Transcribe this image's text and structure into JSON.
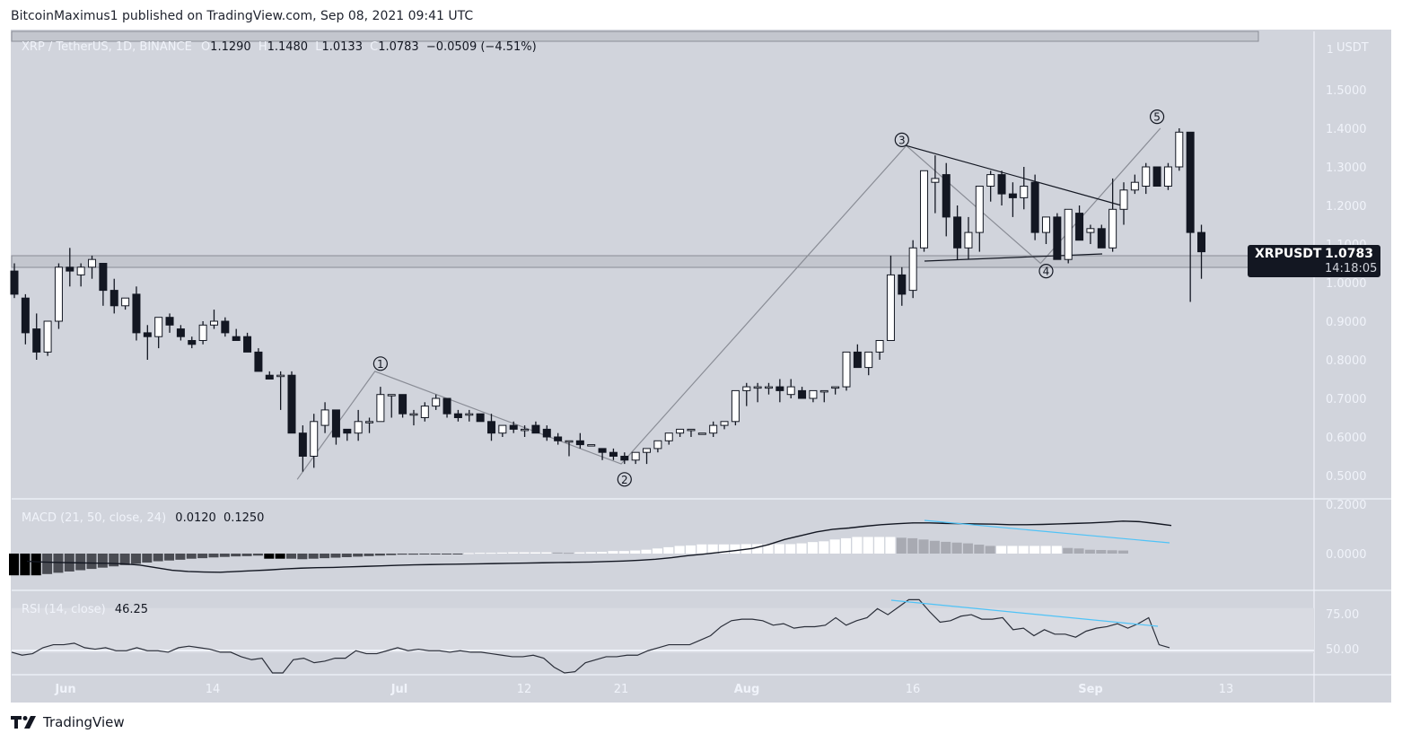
{
  "header": {
    "publisher_line": "BitcoinMaximus1 published on TradingView.com, Sep 08, 2021 09:41 UTC"
  },
  "legend": {
    "symbol": "XRP / TetherUS, 1D, BINANCE",
    "o_label": "O",
    "o": "1.1290",
    "h_label": "H",
    "h": "1.1480",
    "l_label": "L",
    "l": "1.0133",
    "c_label": "C",
    "c": "1.0783",
    "change": "−0.0509 (−4.51%)"
  },
  "macd_legend": {
    "label": "MACD (21, 50, close, 24)",
    "v1": "0.0120",
    "v2": "0.1250"
  },
  "rsi_legend": {
    "label": "RSI (14, close)",
    "v": "46.25"
  },
  "price_tag": {
    "symbol": "XRPUSDT",
    "price": "1.0783",
    "countdown": "14:18:05"
  },
  "footer": {
    "brand": "TradingView"
  },
  "colors": {
    "bg": "#d1d4dc",
    "bull": "#ffffff",
    "bear": "#131722",
    "wave": "#8a8d96",
    "divergence": "#4fc3f7",
    "hist_neg_dark": "#000000",
    "hist_neg": "#4a4c53",
    "hist_pos": "#ffffff",
    "hist_pos_fall": "#a8aab2"
  },
  "chart_data": {
    "type": "candlestick",
    "title": "XRP / TetherUS, 1D, BINANCE",
    "ylabel": "USDT",
    "currency_label": "USDT",
    "y_ticks": [
      "1.5000",
      "1.4000",
      "1.3000",
      "1.2000",
      "1.1000",
      "1.0000",
      "0.9000",
      "0.8000",
      "0.7000",
      "0.6000",
      "0.5000"
    ],
    "x_ticks": [
      "Jun",
      "14",
      "Jul",
      "12",
      "21",
      "Aug",
      "16",
      "Sep",
      "13"
    ],
    "macd_ticks": [
      "0.2000",
      "0.0000"
    ],
    "rsi_ticks": [
      "75.00",
      "50.00"
    ],
    "last": {
      "open": 1.129,
      "high": 1.148,
      "low": 1.0133,
      "close": 1.0783,
      "change": -0.0509,
      "change_pct": -4.51
    },
    "candles": [
      [
        1.03,
        1.05,
        0.96,
        0.97
      ],
      [
        0.96,
        0.97,
        0.84,
        0.87
      ],
      [
        0.88,
        0.92,
        0.8,
        0.82
      ],
      [
        0.82,
        0.9,
        0.81,
        0.9
      ],
      [
        0.9,
        1.05,
        0.88,
        1.04
      ],
      [
        1.04,
        1.09,
        0.99,
        1.03
      ],
      [
        1.02,
        1.05,
        0.99,
        1.04
      ],
      [
        1.04,
        1.07,
        1.01,
        1.06
      ],
      [
        1.05,
        1.05,
        0.94,
        0.98
      ],
      [
        0.98,
        1.01,
        0.92,
        0.94
      ],
      [
        0.94,
        0.96,
        0.93,
        0.96
      ],
      [
        0.97,
        0.99,
        0.85,
        0.87
      ],
      [
        0.87,
        0.89,
        0.8,
        0.86
      ],
      [
        0.86,
        0.91,
        0.83,
        0.91
      ],
      [
        0.91,
        0.92,
        0.87,
        0.89
      ],
      [
        0.88,
        0.89,
        0.85,
        0.86
      ],
      [
        0.85,
        0.86,
        0.83,
        0.84
      ],
      [
        0.85,
        0.9,
        0.84,
        0.89
      ],
      [
        0.89,
        0.93,
        0.88,
        0.9
      ],
      [
        0.9,
        0.91,
        0.86,
        0.87
      ],
      [
        0.86,
        0.88,
        0.85,
        0.85
      ],
      [
        0.86,
        0.87,
        0.82,
        0.82
      ],
      [
        0.82,
        0.83,
        0.78,
        0.77
      ],
      [
        0.76,
        0.77,
        0.75,
        0.75
      ],
      [
        0.76,
        0.77,
        0.67,
        0.76
      ],
      [
        0.76,
        0.77,
        0.61,
        0.61
      ],
      [
        0.61,
        0.63,
        0.51,
        0.55
      ],
      [
        0.55,
        0.66,
        0.52,
        0.64
      ],
      [
        0.63,
        0.69,
        0.61,
        0.67
      ],
      [
        0.67,
        0.67,
        0.58,
        0.6
      ],
      [
        0.62,
        0.62,
        0.59,
        0.61
      ],
      [
        0.61,
        0.67,
        0.59,
        0.64
      ],
      [
        0.64,
        0.65,
        0.61,
        0.64
      ],
      [
        0.64,
        0.73,
        0.64,
        0.71
      ],
      [
        0.71,
        0.71,
        0.65,
        0.71
      ],
      [
        0.71,
        0.71,
        0.65,
        0.66
      ],
      [
        0.66,
        0.67,
        0.63,
        0.66
      ],
      [
        0.65,
        0.69,
        0.64,
        0.68
      ],
      [
        0.68,
        0.71,
        0.67,
        0.7
      ],
      [
        0.7,
        0.7,
        0.65,
        0.66
      ],
      [
        0.66,
        0.67,
        0.64,
        0.65
      ],
      [
        0.66,
        0.67,
        0.64,
        0.66
      ],
      [
        0.66,
        0.66,
        0.64,
        0.64
      ],
      [
        0.64,
        0.66,
        0.59,
        0.61
      ],
      [
        0.61,
        0.63,
        0.6,
        0.63
      ],
      [
        0.63,
        0.64,
        0.61,
        0.62
      ],
      [
        0.62,
        0.63,
        0.6,
        0.62
      ],
      [
        0.63,
        0.64,
        0.61,
        0.61
      ],
      [
        0.62,
        0.63,
        0.59,
        0.6
      ],
      [
        0.6,
        0.61,
        0.58,
        0.59
      ],
      [
        0.59,
        0.59,
        0.55,
        0.59
      ],
      [
        0.59,
        0.61,
        0.57,
        0.58
      ],
      [
        0.58,
        0.58,
        0.58,
        0.58
      ],
      [
        0.57,
        0.57,
        0.54,
        0.56
      ],
      [
        0.56,
        0.57,
        0.54,
        0.55
      ],
      [
        0.55,
        0.56,
        0.53,
        0.54
      ],
      [
        0.54,
        0.56,
        0.53,
        0.56
      ],
      [
        0.56,
        0.57,
        0.53,
        0.57
      ],
      [
        0.57,
        0.59,
        0.56,
        0.59
      ],
      [
        0.59,
        0.61,
        0.58,
        0.61
      ],
      [
        0.61,
        0.62,
        0.6,
        0.62
      ],
      [
        0.62,
        0.62,
        0.6,
        0.62
      ],
      [
        0.61,
        0.61,
        0.61,
        0.61
      ],
      [
        0.61,
        0.64,
        0.6,
        0.63
      ],
      [
        0.63,
        0.64,
        0.62,
        0.64
      ],
      [
        0.64,
        0.72,
        0.63,
        0.72
      ],
      [
        0.72,
        0.74,
        0.68,
        0.73
      ],
      [
        0.73,
        0.74,
        0.69,
        0.73
      ],
      [
        0.73,
        0.74,
        0.71,
        0.73
      ],
      [
        0.73,
        0.75,
        0.69,
        0.72
      ],
      [
        0.71,
        0.75,
        0.7,
        0.73
      ],
      [
        0.72,
        0.73,
        0.7,
        0.7
      ],
      [
        0.7,
        0.72,
        0.69,
        0.72
      ],
      [
        0.72,
        0.72,
        0.69,
        0.72
      ],
      [
        0.73,
        0.73,
        0.71,
        0.73
      ],
      [
        0.73,
        0.82,
        0.72,
        0.82
      ],
      [
        0.82,
        0.84,
        0.78,
        0.78
      ],
      [
        0.78,
        0.82,
        0.76,
        0.82
      ],
      [
        0.82,
        0.84,
        0.8,
        0.85
      ],
      [
        0.85,
        1.07,
        0.85,
        1.02
      ],
      [
        1.02,
        1.04,
        0.94,
        0.97
      ],
      [
        0.98,
        1.11,
        0.96,
        1.09
      ],
      [
        1.09,
        1.27,
        1.08,
        1.29
      ],
      [
        1.26,
        1.33,
        1.18,
        1.27
      ],
      [
        1.28,
        1.31,
        1.12,
        1.17
      ],
      [
        1.17,
        1.2,
        1.06,
        1.09
      ],
      [
        1.09,
        1.17,
        1.06,
        1.13
      ],
      [
        1.13,
        1.25,
        1.08,
        1.25
      ],
      [
        1.25,
        1.29,
        1.21,
        1.28
      ],
      [
        1.28,
        1.29,
        1.2,
        1.23
      ],
      [
        1.23,
        1.26,
        1.17,
        1.22
      ],
      [
        1.22,
        1.3,
        1.19,
        1.25
      ],
      [
        1.26,
        1.28,
        1.11,
        1.13
      ],
      [
        1.13,
        1.15,
        1.1,
        1.17
      ],
      [
        1.17,
        1.18,
        1.07,
        1.06
      ],
      [
        1.06,
        1.19,
        1.05,
        1.19
      ],
      [
        1.18,
        1.2,
        1.11,
        1.11
      ],
      [
        1.13,
        1.15,
        1.1,
        1.14
      ],
      [
        1.14,
        1.15,
        1.09,
        1.09
      ],
      [
        1.09,
        1.27,
        1.08,
        1.19
      ],
      [
        1.19,
        1.26,
        1.15,
        1.24
      ],
      [
        1.24,
        1.28,
        1.23,
        1.26
      ],
      [
        1.25,
        1.31,
        1.23,
        1.3
      ],
      [
        1.3,
        1.3,
        1.25,
        1.25
      ],
      [
        1.25,
        1.31,
        1.24,
        1.3
      ],
      [
        1.3,
        1.4,
        1.29,
        1.39
      ],
      [
        1.39,
        1.39,
        0.95,
        1.13
      ],
      [
        1.13,
        1.15,
        1.01,
        1.08
      ]
    ],
    "macd": {
      "hist": [
        -0.085,
        -0.085,
        -0.085,
        -0.08,
        -0.075,
        -0.07,
        -0.065,
        -0.06,
        -0.055,
        -0.05,
        -0.045,
        -0.04,
        -0.035,
        -0.03,
        -0.027,
        -0.024,
        -0.02,
        -0.018,
        -0.015,
        -0.013,
        -0.011,
        -0.01,
        -0.008,
        -0.02,
        -0.02,
        -0.02,
        -0.022,
        -0.02,
        -0.018,
        -0.016,
        -0.014,
        -0.012,
        -0.01,
        -0.008,
        -0.006,
        -0.004,
        -0.004,
        -0.003,
        -0.003,
        -0.002,
        -0.001,
        0.002,
        0.003,
        0.003,
        0.004,
        0.005,
        0.005,
        0.005,
        0.005,
        0.004,
        0.003,
        0.005,
        0.006,
        0.007,
        0.01,
        0.01,
        0.012,
        0.015,
        0.02,
        0.025,
        0.03,
        0.032,
        0.036,
        0.036,
        0.036,
        0.036,
        0.037,
        0.037,
        0.037,
        0.037,
        0.037,
        0.04,
        0.045,
        0.048,
        0.055,
        0.06,
        0.065,
        0.065,
        0.065,
        0.065,
        0.062,
        0.06,
        0.055,
        0.05,
        0.046,
        0.043,
        0.04,
        0.035,
        0.03,
        0.03,
        0.03,
        0.03,
        0.03,
        0.03,
        0.03,
        0.022,
        0.02,
        0.015,
        0.014,
        0.013,
        0.012
      ],
      "line": [
        -0.03,
        -0.033,
        -0.035,
        -0.036,
        -0.037,
        -0.038,
        -0.04,
        -0.045,
        -0.055,
        -0.065,
        -0.07,
        -0.072,
        -0.073,
        -0.07,
        -0.067,
        -0.064,
        -0.06,
        -0.057,
        -0.055,
        -0.054,
        -0.052,
        -0.05,
        -0.048,
        -0.046,
        -0.044,
        -0.043,
        -0.042,
        -0.041,
        -0.04,
        -0.039,
        -0.038,
        -0.037,
        -0.036,
        -0.035,
        -0.034,
        -0.033,
        -0.031,
        -0.029,
        -0.026,
        -0.022,
        -0.016,
        -0.008,
        -0.002,
        0.005,
        0.012,
        0.02,
        0.035,
        0.055,
        0.07,
        0.085,
        0.095,
        0.1,
        0.107,
        0.113,
        0.117,
        0.12,
        0.12,
        0.118,
        0.117,
        0.116,
        0.115,
        0.113,
        0.113,
        0.114,
        0.116,
        0.118,
        0.12,
        0.123,
        0.127,
        0.125,
        0.118,
        0.11
      ],
      "divergence_line": {
        "from_idx": 87,
        "to_idx": 109
      }
    },
    "rsi": {
      "values": [
        45,
        43,
        44,
        48,
        50,
        50,
        51,
        48,
        47,
        48,
        46,
        46,
        48,
        46,
        46,
        45,
        48,
        49,
        48,
        47,
        45,
        45,
        42,
        40,
        41,
        28,
        30,
        40,
        41,
        38,
        39,
        41,
        41,
        46,
        44,
        44,
        46,
        48,
        46,
        47,
        46,
        46,
        45,
        46,
        45,
        45,
        44,
        43,
        42,
        42,
        43,
        41,
        35,
        30,
        32,
        38,
        40,
        42,
        42,
        43,
        43,
        46,
        48,
        50,
        50,
        50,
        53,
        56,
        62,
        66,
        67,
        67,
        66,
        63,
        64,
        61,
        62,
        62,
        63,
        68,
        63,
        66,
        68,
        74,
        70,
        75,
        80,
        80,
        72,
        65,
        66,
        69,
        70,
        67,
        67,
        68,
        60,
        61,
        56,
        60,
        57,
        57,
        55,
        59,
        61,
        62,
        64,
        61,
        64,
        68,
        50,
        48
      ],
      "ylim": [
        30,
        85
      ],
      "overbought": 70,
      "divergence_line": {
        "from_idx": 86,
        "to_idx": 109
      }
    },
    "annotations": [
      {
        "label": "1",
        "x_idx": 33,
        "price": 0.79
      },
      {
        "label": "2",
        "x_idx": 55,
        "price": 0.49
      },
      {
        "label": "3",
        "x_idx": 80,
        "price": 1.37
      },
      {
        "label": "4",
        "x_idx": 93,
        "price": 1.03
      },
      {
        "label": "5",
        "x_idx": 103,
        "price": 1.43
      }
    ]
  }
}
